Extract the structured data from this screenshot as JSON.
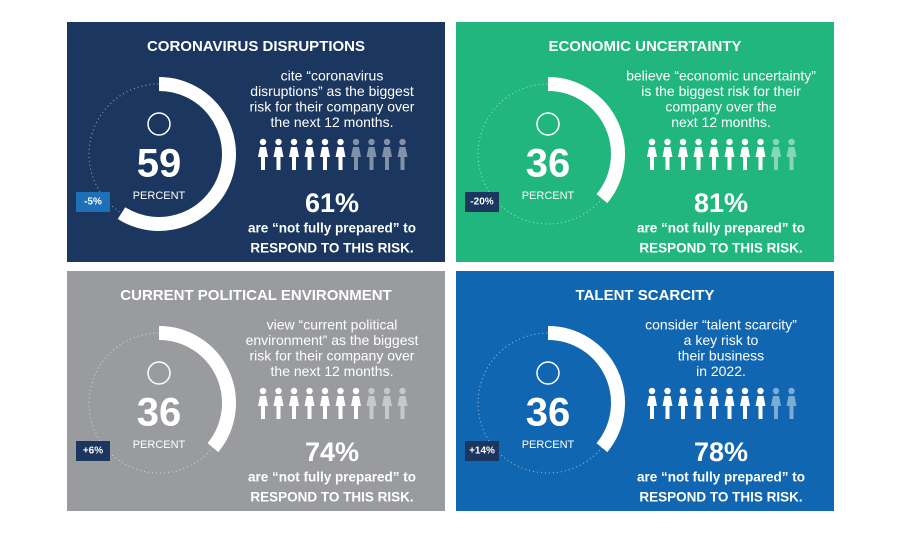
{
  "panels": [
    {
      "title": "CORONAVIRUS DISRUPTIONS",
      "color": "#1b365f",
      "badge_color": "#1d6fb8",
      "percent": 59,
      "percent_label": "PERCENT",
      "change": "-5%",
      "description": [
        "cite “coronavirus",
        "disruptions” as the biggest",
        "risk for their company over",
        "the next 12 months."
      ],
      "prepared": {
        "value": 61,
        "label": "61%"
      },
      "prepared_text": [
        "are “not fully prepared” to",
        "RESPOND TO THIS RISK."
      ]
    },
    {
      "title": "ECONOMIC UNCERTAINTY",
      "color": "#22b67f",
      "badge_color": "#1b365f",
      "percent": 36,
      "percent_label": "PERCENT",
      "change": "-20%",
      "description": [
        "believe “economic uncertainty”",
        "is the biggest risk for their",
        "company over the",
        "next 12 months."
      ],
      "prepared": {
        "value": 81,
        "label": "81%"
      },
      "prepared_text": [
        "are “not fully prepared” to",
        "RESPOND TO THIS RISK."
      ]
    },
    {
      "title": "CURRENT POLITICAL ENVIRONMENT",
      "color": "#9a9b9e",
      "badge_color": "#1b365f",
      "percent": 36,
      "percent_label": "PERCENT",
      "change": "+6%",
      "description": [
        "view “current political",
        "environment” as the biggest",
        "risk for their company over",
        "the next 12 months."
      ],
      "prepared": {
        "value": 74,
        "label": "74%"
      },
      "prepared_text": [
        "are “not fully prepared” to",
        "RESPOND TO THIS RISK."
      ]
    },
    {
      "title": "TALENT SCARCITY",
      "color": "#1166b1",
      "badge_color": "#1b365f",
      "percent": 36,
      "percent_label": "PERCENT",
      "change": "+14%",
      "description": [
        "consider “talent scarcity”",
        "a key risk to",
        "their business",
        "in 2022."
      ],
      "prepared": {
        "value": 78,
        "label": "78%"
      },
      "prepared_text": [
        "are “not fully prepared” to",
        "RESPOND TO THIS RISK."
      ]
    }
  ]
}
